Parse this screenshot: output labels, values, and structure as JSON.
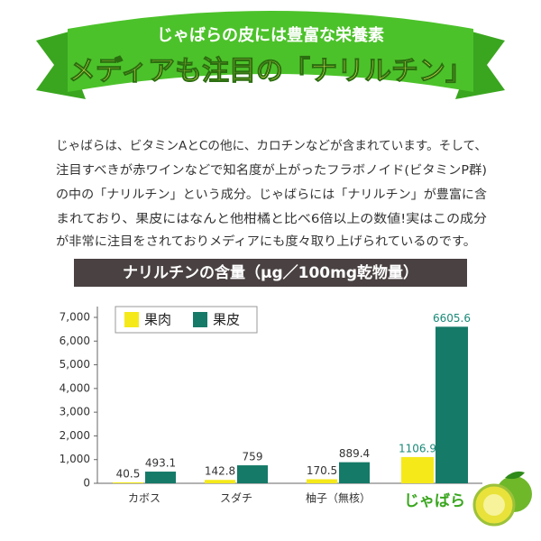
{
  "banner": {
    "subtitle": "じゃばらの皮には豊富な栄養素",
    "title": "メディアも注目の「ナリルチン」"
  },
  "paragraph": [
    "じゃばらは、ビタミンAとCの他に、カロチンなどが含まれています。そして、",
    "注目すべきが赤ワインなどで知名度が上がったフラボノイド(ビタミンP群)",
    "の中の「ナリルチン」という成分。じゃばらには「ナリルチン」が豊富に含",
    "まれており、果皮にはなんと他柑橘と比べ6倍以上の数値!実はこの成分",
    "が非常に注目をされておりメディアにも度々取り上げられているのです。"
  ],
  "chart_data": {
    "type": "bar",
    "title": "ナリルチンの含量（μg／100mg乾物量）",
    "categories": [
      "カボス",
      "スダチ",
      "柚子（無核）",
      "じゃばら"
    ],
    "series": [
      {
        "name": "果肉",
        "color": "#f5e91a",
        "values": [
          40.5,
          142.8,
          170.5,
          1106.9
        ]
      },
      {
        "name": "果皮",
        "color": "#157a68",
        "values": [
          493.1,
          759,
          889.4,
          6605.6
        ]
      }
    ],
    "ylim": [
      0,
      7000
    ],
    "yticks": [
      0,
      {
        "value": 1000,
        "label": "1,000"
      },
      {
        "value": 2000,
        "label": "2,000"
      },
      {
        "value": 3000,
        "label": "3,000"
      },
      {
        "value": 4000,
        "label": "4,000"
      },
      {
        "value": 5000,
        "label": "5,000"
      },
      {
        "value": 6000,
        "label": "6,000"
      },
      {
        "value": 7000,
        "label": "7,000"
      }
    ],
    "legend": "top-left"
  }
}
